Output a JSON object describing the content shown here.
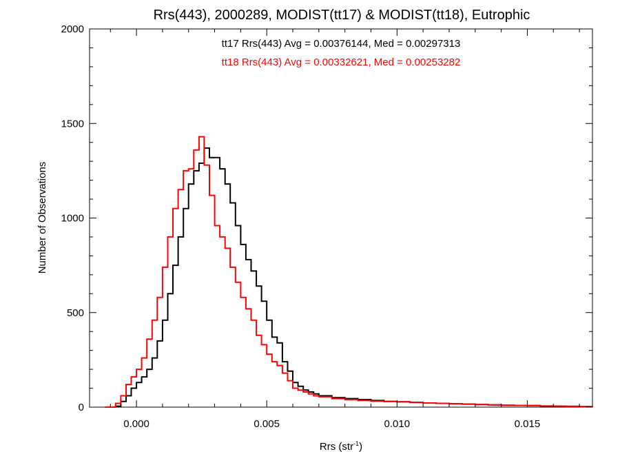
{
  "chart_data": {
    "type": "line",
    "title": "Rrs(443), 2000289, MODIST(tt17) & MODIST(tt18), Eutrophic",
    "xlabel": "Rrs (str",
    "xlabel_sup": "-1",
    "xlabel_close": ")",
    "ylabel": "Number of Observations",
    "xlim": [
      -0.0018,
      0.0175
    ],
    "ylim": [
      0,
      2000
    ],
    "x_ticks": [
      0.0,
      0.005,
      0.01,
      0.015
    ],
    "x_tick_labels": [
      "0.000",
      "0.005",
      "0.010",
      "0.015"
    ],
    "y_ticks": [
      0,
      500,
      1000,
      1500,
      2000
    ],
    "y_tick_labels": [
      "0",
      "500",
      "1000",
      "1500",
      "2000"
    ],
    "grid": false,
    "annotations": [
      "tt17 Rrs(443) Avg = 0.00376144, Med = 0.00297313",
      "tt18 Rrs(443) Avg = 0.00332621, Med = 0.00253282"
    ],
    "series": [
      {
        "color": "#000000",
        "x": [
          -0.0012,
          -0.0008,
          -0.0006,
          -0.0004,
          -0.0002,
          0.0,
          0.0002,
          0.0004,
          0.0006,
          0.0008,
          0.001,
          0.0012,
          0.0014,
          0.0016,
          0.0018,
          0.002,
          0.0022,
          0.0024,
          0.0026,
          0.0028,
          0.003,
          0.0032,
          0.0034,
          0.0036,
          0.0038,
          0.004,
          0.0042,
          0.0044,
          0.0046,
          0.0048,
          0.005,
          0.0052,
          0.0054,
          0.0056,
          0.0058,
          0.006,
          0.0062,
          0.0064,
          0.0066,
          0.0068,
          0.007,
          0.0075,
          0.008,
          0.0085,
          0.009,
          0.0095,
          0.01,
          0.0105,
          0.011,
          0.0115,
          0.012,
          0.0125,
          0.013,
          0.0135,
          0.014,
          0.0145,
          0.015,
          0.0155,
          0.016,
          0.0165,
          0.017,
          0.0175
        ],
        "y": [
          0,
          5,
          30,
          60,
          100,
          130,
          160,
          200,
          260,
          350,
          460,
          600,
          750,
          900,
          1050,
          1180,
          1250,
          1290,
          1370,
          1320,
          1320,
          1260,
          1180,
          1080,
          960,
          860,
          780,
          720,
          640,
          560,
          460,
          370,
          340,
          240,
          190,
          130,
          110,
          90,
          80,
          70,
          60,
          50,
          45,
          40,
          35,
          30,
          28,
          25,
          22,
          20,
          18,
          16,
          14,
          12,
          10,
          9,
          8,
          6,
          5,
          4,
          3,
          2
        ]
      },
      {
        "color": "#ff0000",
        "x": [
          -0.0012,
          -0.0008,
          -0.0006,
          -0.0004,
          -0.0002,
          0.0,
          0.0002,
          0.0004,
          0.0006,
          0.0008,
          0.001,
          0.0012,
          0.0014,
          0.0016,
          0.0018,
          0.002,
          0.0022,
          0.0024,
          0.0026,
          0.0028,
          0.003,
          0.0032,
          0.0034,
          0.0036,
          0.0038,
          0.004,
          0.0042,
          0.0044,
          0.0046,
          0.0048,
          0.005,
          0.0052,
          0.0054,
          0.0056,
          0.0058,
          0.006,
          0.0062,
          0.0064,
          0.0066,
          0.0068,
          0.007,
          0.0075,
          0.008,
          0.0085,
          0.009,
          0.0095,
          0.01,
          0.0105,
          0.011,
          0.0115,
          0.012,
          0.0125,
          0.013,
          0.0135,
          0.014,
          0.0145,
          0.015,
          0.0155,
          0.016,
          0.0165,
          0.017,
          0.0175
        ],
        "y": [
          0,
          20,
          60,
          120,
          160,
          200,
          260,
          360,
          460,
          580,
          740,
          900,
          1050,
          1150,
          1250,
          1260,
          1360,
          1430,
          1280,
          1120,
          960,
          900,
          840,
          740,
          660,
          580,
          520,
          460,
          380,
          330,
          280,
          240,
          220,
          180,
          140,
          100,
          90,
          80,
          70,
          60,
          55,
          45,
          40,
          35,
          32,
          30,
          28,
          25,
          22,
          20,
          18,
          16,
          14,
          12,
          10,
          9,
          8,
          6,
          5,
          4,
          3,
          2
        ]
      }
    ]
  }
}
